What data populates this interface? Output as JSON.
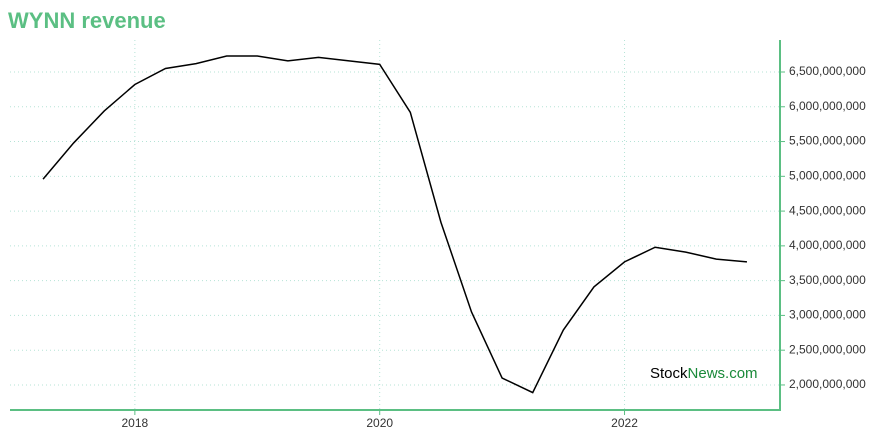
{
  "chart_data": {
    "type": "line",
    "title": "WYNN revenue",
    "x": [
      2017.25,
      2017.5,
      2017.75,
      2018.0,
      2018.25,
      2018.5,
      2018.75,
      2019.0,
      2019.25,
      2019.5,
      2019.75,
      2020.0,
      2020.25,
      2020.5,
      2020.75,
      2021.0,
      2021.25,
      2021.5,
      2021.75,
      2022.0,
      2022.25,
      2022.5,
      2022.75,
      2023.0
    ],
    "series": [
      {
        "name": "WYNN revenue",
        "color": "#000000",
        "values": [
          4960000000,
          5480000000,
          5940000000,
          6320000000,
          6550000000,
          6620000000,
          6730000000,
          6730000000,
          6660000000,
          6710000000,
          6660000000,
          6610000000,
          5920000000,
          4340000000,
          3050000000,
          2100000000,
          1890000000,
          2790000000,
          3410000000,
          3770000000,
          3980000000,
          3910000000,
          3810000000,
          3770000000
        ]
      }
    ],
    "xlim": [
      2016.98,
      2023.27
    ],
    "xticks": [
      2018,
      2020,
      2022
    ],
    "ylim": [
      1640000000,
      6960000000
    ],
    "yticks": [
      {
        "value": 2000000000,
        "label": "2,000,000,000"
      },
      {
        "value": 2500000000,
        "label": "2,500,000,000"
      },
      {
        "value": 3000000000,
        "label": "3,000,000,000"
      },
      {
        "value": 3500000000,
        "label": "3,500,000,000"
      },
      {
        "value": 4000000000,
        "label": "4,000,000,000"
      },
      {
        "value": 4500000000,
        "label": "4,500,000,000"
      },
      {
        "value": 5000000000,
        "label": "5,000,000,000"
      },
      {
        "value": 5500000000,
        "label": "5,500,000,000"
      },
      {
        "value": 6000000000,
        "label": "6,000,000,000"
      },
      {
        "value": 6500000000,
        "label": "6,500,000,000"
      }
    ],
    "grid": true,
    "axis_color": "#5bbf83",
    "watermark": [
      "Stock",
      "News.com"
    ]
  }
}
